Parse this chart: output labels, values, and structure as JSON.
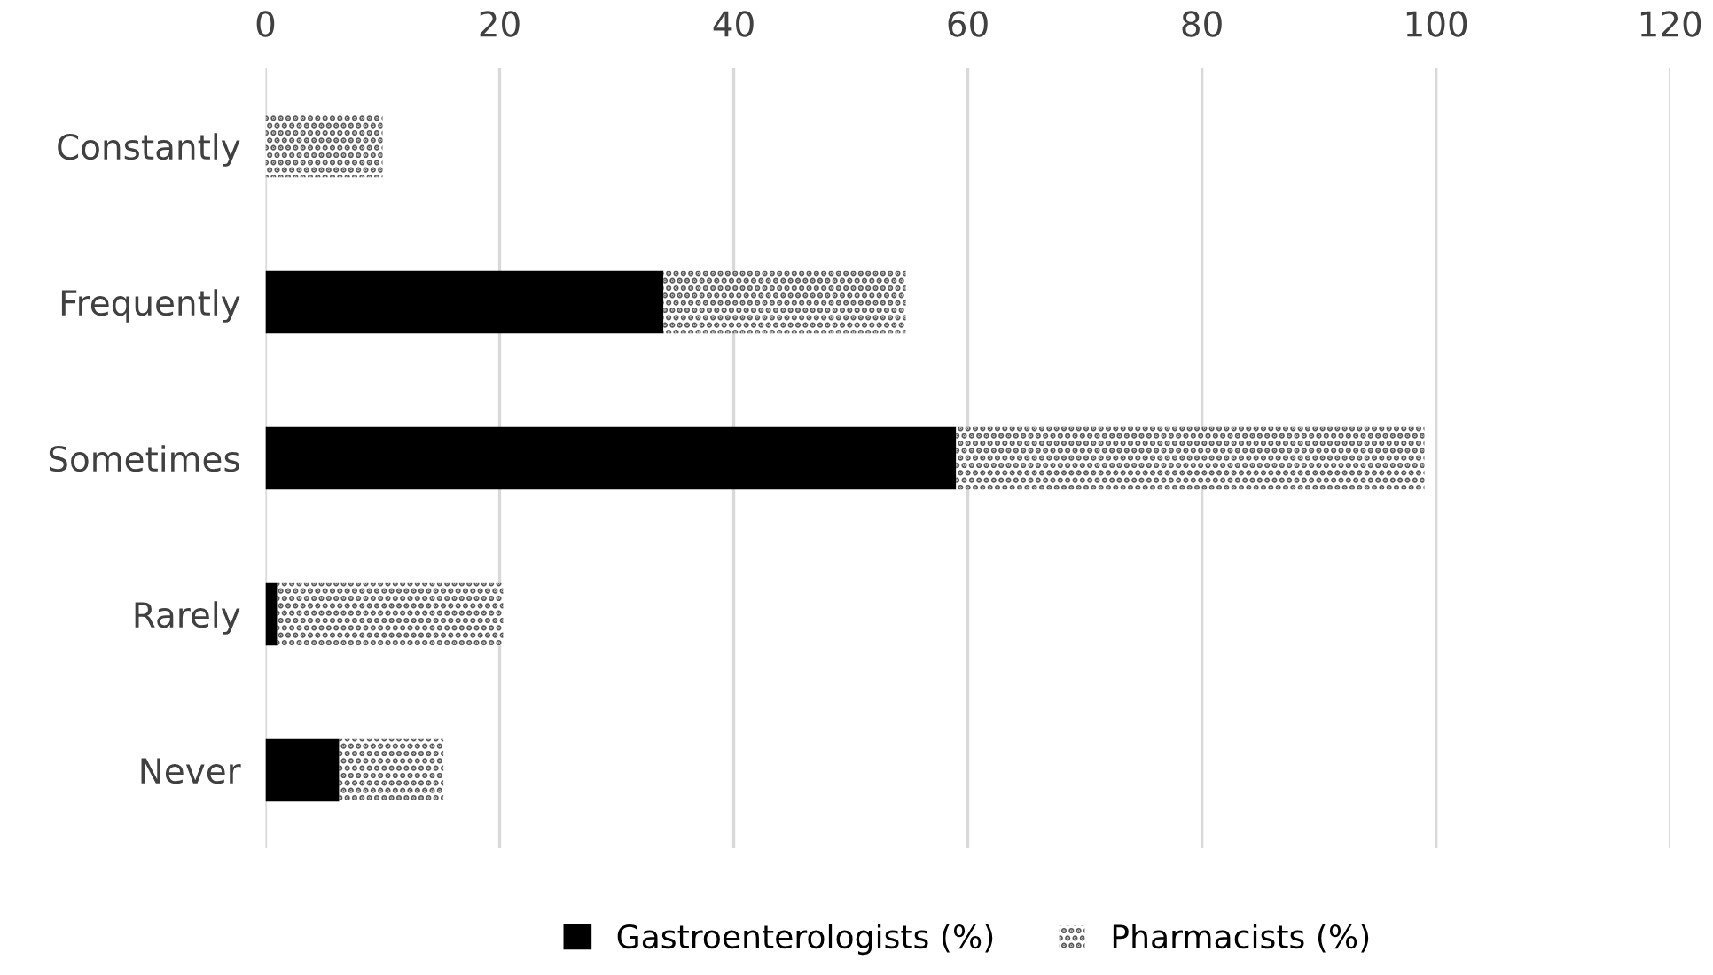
{
  "chart_data": {
    "type": "bar",
    "orientation": "horizontal",
    "stacked": true,
    "categories": [
      "Constantly",
      "Frequently",
      "Sometimes",
      "Rarely",
      "Never"
    ],
    "series": [
      {
        "name": "Gastroenterologists (%)",
        "color": "#000000",
        "values": [
          0,
          34,
          59,
          1,
          6.3
        ]
      },
      {
        "name": "Pharmacists (%)",
        "color": "#595959",
        "values": [
          10,
          20.7,
          40,
          19.3,
          8.9
        ]
      }
    ],
    "xlim": [
      0,
      120
    ],
    "xticks": [
      0,
      20,
      40,
      60,
      80,
      100,
      120
    ],
    "grid": "x",
    "legend": "bottom"
  }
}
